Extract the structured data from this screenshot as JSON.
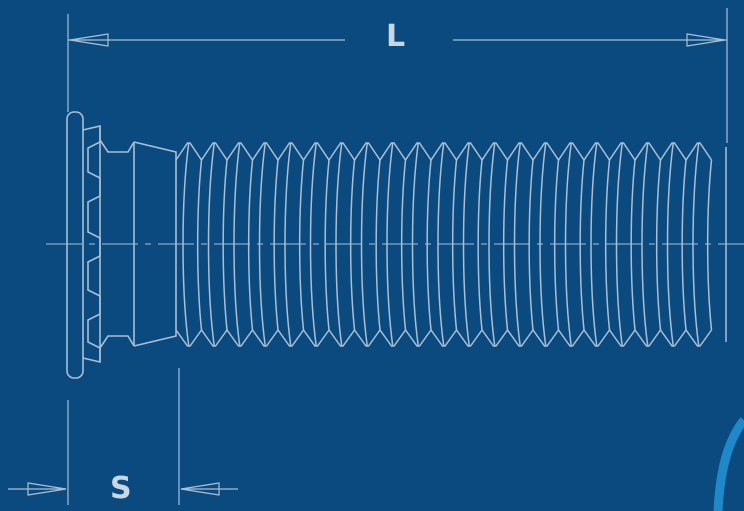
{
  "dimensions": {
    "length_label": "L",
    "head_thickness_label": "S"
  },
  "colors": {
    "background": "#0b4a7e",
    "line": "#a9bfd6",
    "label": "#c9d6e6",
    "accent_arc": "#1e88c8"
  }
}
